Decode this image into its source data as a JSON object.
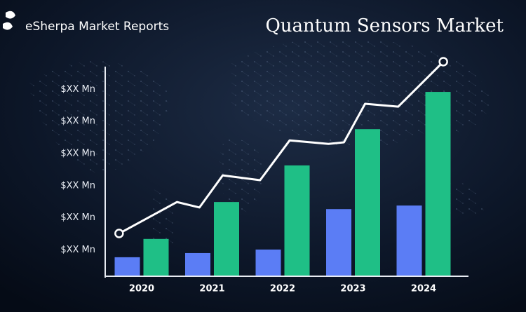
{
  "brand": "eSherpa Market Reports",
  "chart_data": {
    "type": "bar",
    "title": "Quantum Sensors Market",
    "categories": [
      "2020",
      "2021",
      "2022",
      "2023",
      "2024"
    ],
    "series": [
      {
        "color": "#5b7df5",
        "values": [
          0.77,
          0.9,
          1.01,
          2.27,
          2.38
        ]
      },
      {
        "color": "#1fbf86",
        "values": [
          1.34,
          2.49,
          3.63,
          4.76,
          5.92
        ]
      }
    ],
    "overlay": {
      "type": "line",
      "color": "#ffffff",
      "x": [
        -0.32,
        0.5,
        0.82,
        1.15,
        1.68,
        2.1,
        2.65,
        2.87,
        3.17,
        3.64,
        4.28
      ],
      "values": [
        1.51,
        2.49,
        2.32,
        3.32,
        3.17,
        4.41,
        4.3,
        4.35,
        5.55,
        5.46,
        6.86
      ]
    },
    "ylim": [
      0.2,
      7
    ],
    "yticks": [
      {
        "value": 1,
        "label": "$XX Mn"
      },
      {
        "value": 2,
        "label": "$XX Mn"
      },
      {
        "value": 3,
        "label": "$XX Mn"
      },
      {
        "value": 4,
        "label": "$XX Mn"
      },
      {
        "value": 5,
        "label": "$XX Mn"
      },
      {
        "value": 6,
        "label": "$XX Mn"
      }
    ]
  }
}
